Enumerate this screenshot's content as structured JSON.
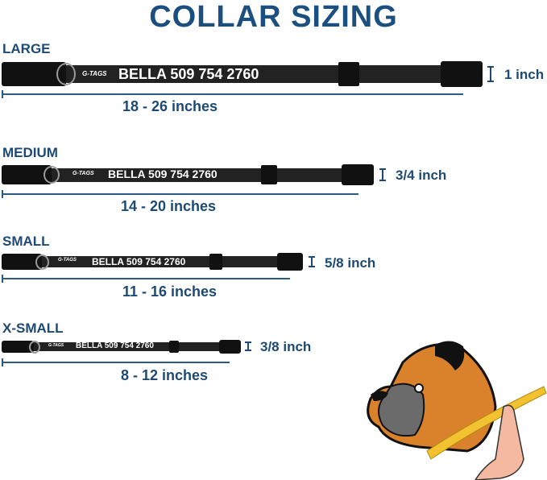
{
  "title": "COLLAR SIZING",
  "sizes": [
    {
      "label": "LARGE",
      "range": "18 - 26 inches",
      "width": "1 inch",
      "name_text": "BELLA 509 754 2760",
      "logo": "G-TAGS"
    },
    {
      "label": "MEDIUM",
      "range": "14 - 20 inches",
      "width": "3/4 inch",
      "name_text": "BELLA 509 754 2760",
      "logo": "G-TAGS"
    },
    {
      "label": "SMALL",
      "range": "11 - 16 inches",
      "width": "5/8 inch",
      "name_text": "BELLA 509 754 2760",
      "logo": "G-TAGS"
    },
    {
      "label": "X-SMALL",
      "range": "8 - 12 inches",
      "width": "3/8 inch",
      "name_text": "BELLA 509 754 2760",
      "logo": "G-TAGS"
    }
  ],
  "colors": {
    "title": "#1b4f80",
    "text": "#1d4a74",
    "collar": "#222222",
    "tape": "#f2c230",
    "dog": "#d9822b"
  }
}
